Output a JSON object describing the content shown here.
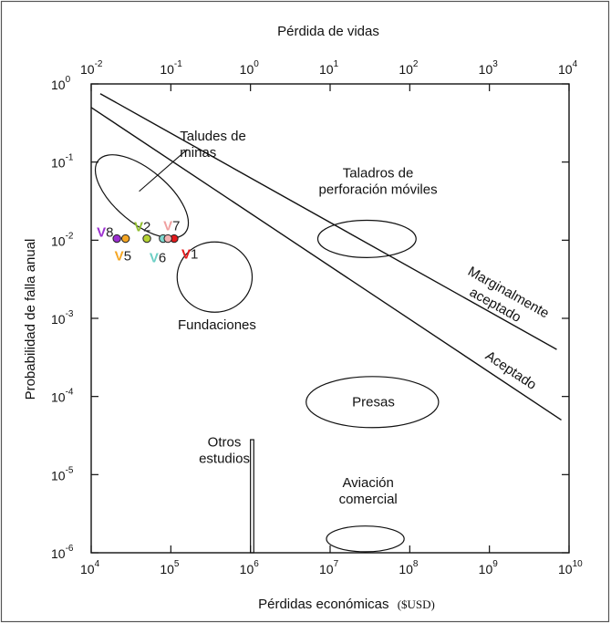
{
  "chart_data": {
    "type": "scatter",
    "x_axis": {
      "label": "Pérdidas económicas",
      "unit": "($USD)",
      "scale": "log",
      "range": [
        10000,
        10000000000
      ],
      "tick_values": [
        10000,
        100000,
        1000000,
        10000000,
        100000000,
        1000000000,
        10000000000
      ],
      "tick_labels": [
        {
          "base": "10",
          "exp": "4"
        },
        {
          "base": "10",
          "exp": "5"
        },
        {
          "base": "10",
          "exp": "6"
        },
        {
          "base": "10",
          "exp": "7"
        },
        {
          "base": "10",
          "exp": "8"
        },
        {
          "base": "10",
          "exp": "9"
        },
        {
          "base": "10",
          "exp": "10"
        }
      ]
    },
    "x2_axis": {
      "label": "Pérdida de vidas",
      "scale": "log",
      "range": [
        0.01,
        10000
      ],
      "tick_values": [
        0.01,
        0.1,
        1,
        10,
        100,
        1000,
        10000
      ],
      "tick_labels": [
        {
          "base": "10",
          "exp": "-2"
        },
        {
          "base": "10",
          "exp": "-1"
        },
        {
          "base": "10",
          "exp": "0"
        },
        {
          "base": "10",
          "exp": "1"
        },
        {
          "base": "10",
          "exp": "2"
        },
        {
          "base": "10",
          "exp": "3"
        },
        {
          "base": "10",
          "exp": "4"
        }
      ]
    },
    "y_axis": {
      "label": "Probabilidad de falla anual",
      "scale": "log",
      "range": [
        1e-06,
        1
      ],
      "tick_values": [
        1,
        0.1,
        0.01,
        0.001,
        0.0001,
        1e-05,
        1e-06
      ],
      "tick_labels": [
        {
          "base": "10",
          "exp": "0"
        },
        {
          "base": "10",
          "exp": "-1"
        },
        {
          "base": "10",
          "exp": "-2"
        },
        {
          "base": "10",
          "exp": "-3"
        },
        {
          "base": "10",
          "exp": "-4"
        },
        {
          "base": "10",
          "exp": "-5"
        },
        {
          "base": "10",
          "exp": "-6"
        }
      ]
    },
    "boundary_lines": [
      {
        "name": "Marginalmente aceptado",
        "x": [
          13000,
          7000000000
        ],
        "y": [
          0.75,
          0.0004
        ]
      },
      {
        "name": "Aceptado",
        "x": [
          10000,
          8000000000
        ],
        "y": [
          0.5,
          5e-05
        ]
      }
    ],
    "regions": [
      {
        "name": "Taludes de minas",
        "shape": "ellipse",
        "center": [
          36000,
          0.04
        ],
        "x_span": [
          17000,
          110000
        ],
        "y_span": [
          0.012,
          0.11
        ]
      },
      {
        "name": "Taladros de perforación móviles",
        "shape": "ellipse",
        "center": [
          29000000,
          0.0105
        ],
        "x_span": [
          7000000,
          120000000
        ],
        "y_span": [
          0.006,
          0.018
        ]
      },
      {
        "name": "Fundaciones",
        "shape": "ellipse",
        "center": [
          350000,
          0.0033
        ],
        "x_span": [
          120000,
          1050000
        ],
        "y_span": [
          0.0012,
          0.0095
        ]
      },
      {
        "name": "Presas",
        "shape": "ellipse",
        "center": [
          35000000,
          9e-05
        ],
        "x_span": [
          5000000,
          230000000
        ],
        "y_span": [
          4e-05,
          0.00018
        ]
      },
      {
        "name": "Otros estudios",
        "shape": "rectangle",
        "x_span": [
          1000000,
          1100000
        ],
        "y_span": [
          1e-06,
          2.8e-05
        ]
      },
      {
        "name": "Aviación comercial",
        "shape": "ellipse",
        "center": [
          28000000,
          1.5e-06
        ],
        "x_span": [
          9000000,
          85000000
        ],
        "y_span": [
          1.03e-06,
          2.2e-06
        ]
      }
    ],
    "points": [
      {
        "label": "V1",
        "x": 110000,
        "y": 0.0105,
        "color": "#e41a1c",
        "label_color": "#e41a1c"
      },
      {
        "label": "V2",
        "x": 50000,
        "y": 0.0105,
        "color": "#b5d334",
        "label_color": "#8fbc2d"
      },
      {
        "label": "V5",
        "x": 27000,
        "y": 0.0105,
        "color": "#f5a623",
        "label_color": "#f5a623"
      },
      {
        "label": "V6",
        "x": 80000,
        "y": 0.0105,
        "color": "#7fd9d0",
        "label_color": "#6ccfc5"
      },
      {
        "label": "V7",
        "x": 92000,
        "y": 0.0105,
        "color": "#f2b3b3",
        "label_color": "#f0a0a0"
      },
      {
        "label": "V8",
        "x": 21000,
        "y": 0.0105,
        "color": "#9b2fd0",
        "label_color": "#9b2fd0"
      }
    ],
    "grid": false
  }
}
